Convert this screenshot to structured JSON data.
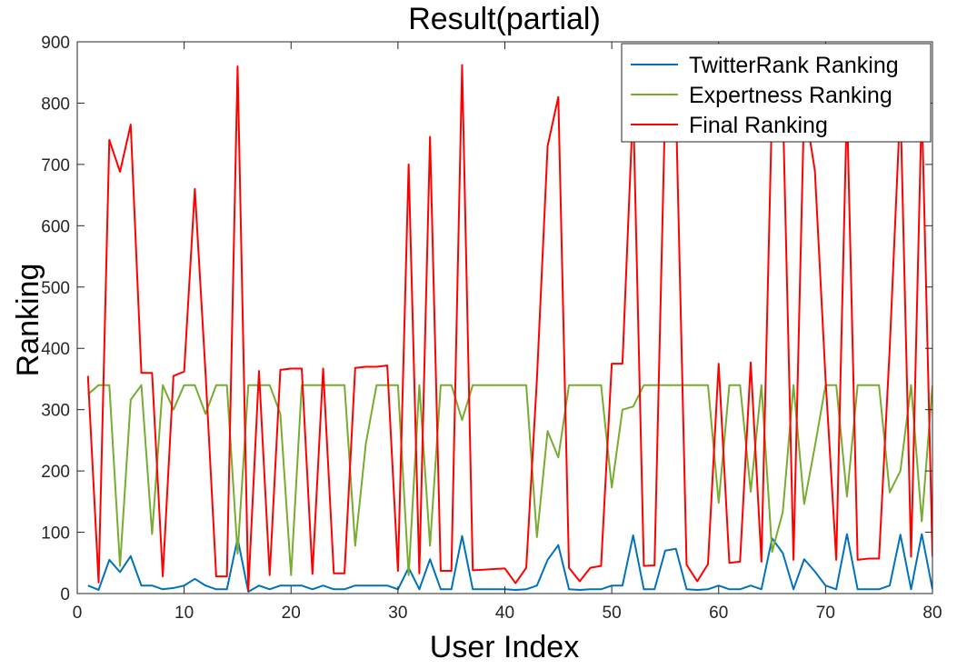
{
  "chart_data": {
    "type": "line",
    "title": "Result(partial)",
    "xlabel": "User Index",
    "ylabel": "Ranking",
    "xlim": [
      0,
      80
    ],
    "ylim": [
      0,
      900
    ],
    "xticks": [
      0,
      10,
      20,
      30,
      40,
      50,
      60,
      70,
      80
    ],
    "yticks": [
      0,
      100,
      200,
      300,
      400,
      500,
      600,
      700,
      800,
      900
    ],
    "grid": false,
    "legend_position": "top-right",
    "x": [
      1,
      2,
      3,
      4,
      5,
      6,
      7,
      8,
      9,
      10,
      11,
      12,
      13,
      14,
      15,
      16,
      17,
      18,
      19,
      20,
      21,
      22,
      23,
      24,
      25,
      26,
      27,
      28,
      29,
      30,
      31,
      32,
      33,
      34,
      35,
      36,
      37,
      38,
      39,
      40,
      41,
      42,
      43,
      44,
      45,
      46,
      47,
      48,
      49,
      50,
      51,
      52,
      53,
      54,
      55,
      56,
      57,
      58,
      59,
      60,
      61,
      62,
      63,
      64,
      65,
      66,
      67,
      68,
      69,
      70,
      71,
      72,
      73,
      74,
      75,
      76,
      77,
      78,
      79,
      80
    ],
    "series": [
      {
        "name": "TwitterRank Ranking",
        "color": "#0072BD",
        "values": [
          13,
          6,
          55,
          35,
          61,
          13,
          13,
          7,
          9,
          13,
          24,
          13,
          7,
          7,
          90,
          3,
          13,
          7,
          13,
          13,
          13,
          7,
          13,
          7,
          7,
          13,
          13,
          13,
          13,
          7,
          42,
          7,
          56,
          7,
          7,
          94,
          7,
          7,
          7,
          7,
          6,
          7,
          13,
          55,
          79,
          7,
          6,
          7,
          7,
          13,
          13,
          95,
          7,
          7,
          70,
          73,
          7,
          6,
          7,
          13,
          7,
          7,
          13,
          7,
          90,
          66,
          7,
          56,
          36,
          13,
          7,
          97,
          7,
          7,
          7,
          13,
          96,
          7,
          97,
          7
        ]
      },
      {
        "name": "Expertness Ranking",
        "color": "#77AC30",
        "values": [
          325,
          340,
          340,
          45,
          316,
          340,
          97,
          340,
          300,
          340,
          340,
          293,
          340,
          340,
          65,
          340,
          340,
          340,
          293,
          30,
          340,
          340,
          340,
          340,
          340,
          78,
          245,
          340,
          340,
          340,
          30,
          340,
          78,
          340,
          340,
          283,
          340,
          340,
          340,
          340,
          340,
          340,
          92,
          265,
          222,
          340,
          340,
          340,
          340,
          173,
          300,
          305,
          340,
          340,
          340,
          340,
          340,
          340,
          340,
          148,
          340,
          340,
          166,
          340,
          68,
          133,
          340,
          146,
          240,
          340,
          340,
          158,
          340,
          340,
          340,
          165,
          200,
          340,
          118,
          340
        ]
      },
      {
        "name": "Final Ranking",
        "color": "#FF0000",
        "values": [
          355,
          18,
          740,
          688,
          765,
          360,
          360,
          28,
          355,
          362,
          660,
          360,
          28,
          28,
          860,
          5,
          363,
          30,
          365,
          367,
          367,
          32,
          367,
          33,
          33,
          368,
          370,
          370,
          372,
          37,
          700,
          33,
          745,
          37,
          37,
          862,
          38,
          39,
          40,
          41,
          17,
          42,
          350,
          730,
          810,
          42,
          20,
          42,
          45,
          375,
          375,
          800,
          45,
          46,
          800,
          800,
          47,
          20,
          48,
          375,
          50,
          52,
          377,
          52,
          800,
          800,
          55,
          800,
          690,
          350,
          55,
          800,
          55,
          57,
          57,
          400,
          800,
          60,
          800,
          60
        ]
      }
    ]
  }
}
